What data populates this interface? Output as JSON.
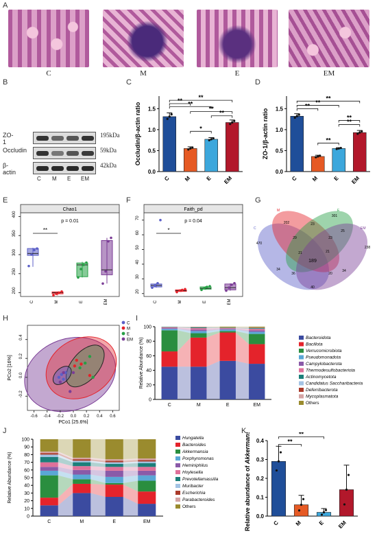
{
  "panels": {
    "A": "A",
    "B": "B",
    "C": "C",
    "D": "D",
    "E": "E",
    "F": "F",
    "G": "G",
    "H": "H",
    "I": "I",
    "J": "J",
    "K": "K"
  },
  "histology": {
    "labels": [
      "C",
      "M",
      "E",
      "EM"
    ]
  },
  "colors": {
    "C": "#1f4e99",
    "M": "#e65a24",
    "E": "#3ca7dc",
    "EM": "#b2182b",
    "groupC": "#5b5fc7",
    "groupM": "#e4232b",
    "groupE": "#27a046",
    "groupEM": "#7b3d96"
  },
  "western": {
    "rows": [
      {
        "name": "ZO-1",
        "kda": "195kDa"
      },
      {
        "name": "Occludin",
        "kda": "59kDa"
      },
      {
        "name": "β-actin",
        "kda": "42kDa"
      }
    ],
    "lanes": [
      "C",
      "M",
      "E",
      "EM"
    ]
  },
  "chart_data": [
    {
      "panel": "C",
      "type": "bar",
      "categories": [
        "C",
        "M",
        "E",
        "EM"
      ],
      "values": [
        1.31,
        0.55,
        0.77,
        1.17
      ],
      "errors": [
        0.09,
        0.04,
        0.04,
        0.06
      ],
      "ylabel": "Occludin/β-actin ratio",
      "ylim": [
        0,
        1.8
      ],
      "yticks": [
        "0.0",
        "0.5",
        "1.0",
        "1.5"
      ],
      "significance": [
        "**",
        "**",
        "**",
        "**",
        "*",
        "**"
      ]
    },
    {
      "panel": "D",
      "type": "bar",
      "categories": [
        "C",
        "M",
        "E",
        "EM"
      ],
      "values": [
        1.32,
        0.36,
        0.55,
        0.93
      ],
      "errors": [
        0.06,
        0.03,
        0.02,
        0.05
      ],
      "ylabel": "ZO-1/β-actin ratio",
      "ylim": [
        0,
        1.8
      ],
      "yticks": [
        "0.0",
        "0.5",
        "1.0",
        "1.5"
      ],
      "significance": [
        "**",
        "**",
        "**",
        "**",
        "**",
        "**"
      ]
    },
    {
      "panel": "E",
      "type": "box",
      "title": "Chao1",
      "categories": [
        "C",
        "M",
        "E",
        "EM"
      ],
      "annotation": "p = 0.01",
      "sig": "**",
      "yticks": [
        "200",
        "250",
        "300",
        "350",
        "400"
      ],
      "ylim": [
        190,
        410
      ],
      "boxes": [
        {
          "q1": 298,
          "median": 303,
          "q3": 316,
          "min": 268,
          "max": 318
        },
        {
          "q1": 197,
          "median": 200,
          "q3": 202,
          "min": 193,
          "max": 203
        },
        {
          "q1": 242,
          "median": 273,
          "q3": 278,
          "min": 240,
          "max": 281
        },
        {
          "q1": 247,
          "median": 260,
          "q3": 337,
          "min": 224,
          "max": 344
        }
      ],
      "points": [
        [
          270,
          300,
          312,
          316
        ],
        [
          193,
          197,
          200,
          203
        ],
        [
          240,
          262,
          273,
          279
        ],
        [
          224,
          256,
          335,
          344
        ]
      ]
    },
    {
      "panel": "F",
      "type": "box",
      "title": "Faith_pd",
      "categories": [
        "C",
        "M",
        "E",
        "EM"
      ],
      "annotation": "p = 0.04",
      "sig": "*",
      "yticks": [
        "20",
        "30",
        "40",
        "50",
        "60",
        "70"
      ],
      "ylim": [
        18,
        75
      ],
      "boxes": [
        {
          "q1": 24.5,
          "median": 25.5,
          "q3": 26.5,
          "min": 24,
          "max": 27
        },
        {
          "q1": 21.5,
          "median": 22,
          "q3": 22.5,
          "min": 21,
          "max": 23
        },
        {
          "q1": 23,
          "median": 23.5,
          "q3": 24.5,
          "min": 22.5,
          "max": 25
        },
        {
          "q1": 22.5,
          "median": 24,
          "q3": 26.5,
          "min": 22,
          "max": 27
        }
      ],
      "points": [
        [
          24,
          25.5,
          27,
          70
        ],
        [
          21,
          22,
          22.5,
          23
        ],
        [
          22.5,
          23.5,
          24.5,
          25
        ],
        [
          22,
          24,
          26,
          27
        ]
      ]
    },
    {
      "panel": "G",
      "type": "venn",
      "sets": [
        "C",
        "M",
        "E",
        "EM"
      ],
      "counts": [
        "202",
        "301",
        "470",
        "238",
        "29",
        "23",
        "23",
        "25",
        "21",
        "21",
        "189",
        "34",
        "34",
        "36",
        "40",
        "20"
      ]
    },
    {
      "panel": "H",
      "type": "scatter",
      "xlabel": "PCo1 [25.6%]",
      "ylabel": "PCo2 [16%]",
      "xticks": [
        "-0.6",
        "-0.4",
        "-0.2",
        "0.0",
        "0.2",
        "0.4",
        "0.6"
      ],
      "yticks": [
        "-0.2",
        "0.0",
        "0.2",
        "0.4"
      ],
      "legend": [
        "C",
        "M",
        "E",
        "EM"
      ],
      "series": [
        {
          "name": "C",
          "points": [
            [
              -0.18,
              0.03
            ],
            [
              -0.12,
              0.05
            ],
            [
              -0.22,
              0.0
            ],
            [
              -0.15,
              -0.02
            ]
          ]
        },
        {
          "name": "M",
          "points": [
            [
              0.05,
              0.18
            ],
            [
              0.12,
              0.14
            ],
            [
              0.25,
              0.02
            ],
            [
              0.02,
              0.12
            ]
          ]
        },
        {
          "name": "E",
          "points": [
            [
              0.1,
              0.1
            ],
            [
              0.18,
              0.15
            ],
            [
              0.25,
              0.22
            ],
            [
              0.3,
              0.0
            ]
          ]
        },
        {
          "name": "EM",
          "points": [
            [
              -0.2,
              -0.05
            ],
            [
              0.0,
              0.05
            ],
            [
              -0.05,
              -0.15
            ],
            [
              -0.15,
              0.05
            ]
          ]
        }
      ]
    },
    {
      "panel": "I",
      "type": "stacked_bar",
      "categories": [
        "C",
        "M",
        "E",
        "EM"
      ],
      "ylabel": "Relative Abundance (%)",
      "yticks": [
        "0",
        "20",
        "40",
        "60",
        "80",
        "100"
      ],
      "series": [
        {
          "name": "Bacteroidota",
          "color": "#3b4ba0",
          "values": [
            45,
            45,
            53,
            49
          ]
        },
        {
          "name": "Bacillota",
          "color": "#e4232b",
          "values": [
            21,
            40,
            39,
            27
          ]
        },
        {
          "name": "Verrucomicrobiota",
          "color": "#2a8e3f",
          "values": [
            29,
            6,
            2,
            14
          ]
        },
        {
          "name": "Pseudomonadota",
          "color": "#5aa7d6",
          "values": [
            2,
            3,
            2,
            3
          ]
        },
        {
          "name": "Campylobacterota",
          "color": "#8a5aa8",
          "values": [
            1,
            2,
            1,
            2
          ]
        },
        {
          "name": "Thermodesulfobacteriota",
          "color": "#e0719a",
          "values": [
            1,
            2,
            1,
            2
          ]
        },
        {
          "name": "Actinomycetota",
          "color": "#1c7f7a",
          "values": [
            0.5,
            1,
            0.5,
            1
          ]
        },
        {
          "name": "Candidatus Saccharibacteria",
          "color": "#a3c3e4",
          "values": [
            0.2,
            0.3,
            0.2,
            0.3
          ]
        },
        {
          "name": "Deferribacterota",
          "color": "#aa3a2a",
          "values": [
            0.1,
            0.3,
            0.1,
            0.3
          ]
        },
        {
          "name": "Mycoplasmatota",
          "color": "#d4a4a4",
          "values": [
            0.1,
            0.2,
            0.1,
            0.2
          ]
        },
        {
          "name": "Others",
          "color": "#9a8b2e",
          "values": [
            0.1,
            0.2,
            1.1,
            1.2
          ]
        }
      ]
    },
    {
      "panel": "J",
      "type": "stacked_bar",
      "categories": [
        "C",
        "M",
        "E",
        "EM"
      ],
      "ylabel": "Relative Abundance (%)",
      "yticks": [
        "0",
        "10",
        "20",
        "30",
        "40",
        "50",
        "60",
        "70",
        "80",
        "90",
        "100"
      ],
      "series": [
        {
          "name": "Hungatella",
          "color": "#3b4ba0",
          "values": [
            14,
            30,
            25,
            16
          ]
        },
        {
          "name": "Bacteroides",
          "color": "#e4232b",
          "values": [
            10,
            12,
            16,
            16
          ]
        },
        {
          "name": "Akkermansia",
          "color": "#2a8e3f",
          "values": [
            29,
            6,
            2,
            14
          ]
        },
        {
          "name": "Porphyromonas",
          "color": "#5aa7d6",
          "values": [
            6,
            6,
            8,
            7
          ]
        },
        {
          "name": "Heminiphilus",
          "color": "#8a5aa8",
          "values": [
            5,
            6,
            8,
            6
          ]
        },
        {
          "name": "Hoylesella",
          "color": "#e0719a",
          "values": [
            6,
            5,
            5,
            5
          ]
        },
        {
          "name": "Prevotellamassilia",
          "color": "#1c7f7a",
          "values": [
            7,
            5,
            4,
            5
          ]
        },
        {
          "name": "Muribacter",
          "color": "#a3c3e4",
          "values": [
            3,
            2,
            2,
            2
          ]
        },
        {
          "name": "Escherichia",
          "color": "#aa3a2a",
          "values": [
            2,
            2,
            2,
            2
          ]
        },
        {
          "name": "Parabacteroides",
          "color": "#d4a4a4",
          "values": [
            2,
            2,
            2,
            2
          ]
        },
        {
          "name": "Others",
          "color": "#9a8b2e",
          "values": [
            16,
            24,
            26,
            25
          ]
        }
      ]
    },
    {
      "panel": "K",
      "type": "bar",
      "categories": [
        "C",
        "M",
        "E",
        "EM"
      ],
      "values": [
        0.29,
        0.06,
        0.02,
        0.14
      ],
      "errors": [
        0.08,
        0.05,
        0.02,
        0.13
      ],
      "ylabel": "Relative abundance of Akkermansia",
      "ylim": [
        0,
        0.4
      ],
      "yticks": [
        "0.0",
        "0.1",
        "0.2",
        "0.3",
        "0.4"
      ],
      "significance": [
        "**",
        "**"
      ]
    }
  ]
}
